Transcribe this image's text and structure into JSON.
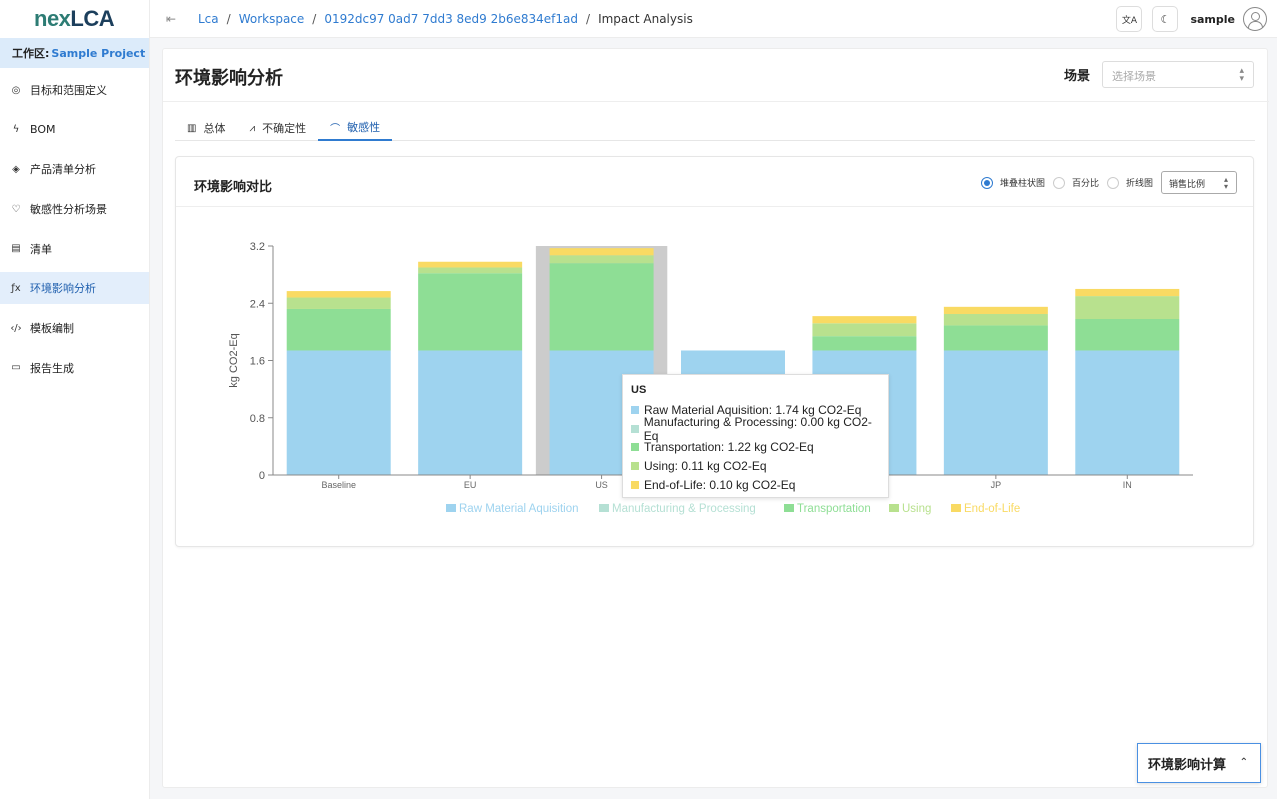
{
  "app": {
    "logo_part1": "nex",
    "logo_part2": "LCA"
  },
  "workspace": {
    "label": "工作区:",
    "project": "Sample Project"
  },
  "sidebar": {
    "items": [
      {
        "label": "目标和范围定义",
        "icon": "target-icon",
        "glyph": "◎"
      },
      {
        "label": "BOM",
        "icon": "bolt-icon",
        "glyph": "ϟ"
      },
      {
        "label": "产品清单分析",
        "icon": "layers-icon",
        "glyph": "◈"
      },
      {
        "label": "敏感性分析场景",
        "icon": "heart-icon",
        "glyph": "♡"
      },
      {
        "label": "清单",
        "icon": "list-icon",
        "glyph": "▤"
      },
      {
        "label": "环境影响分析",
        "icon": "function-icon",
        "glyph": "ƒx"
      },
      {
        "label": "模板编制",
        "icon": "code-icon",
        "glyph": "‹/›"
      },
      {
        "label": "报告生成",
        "icon": "file-icon",
        "glyph": "▭"
      }
    ]
  },
  "breadcrumb": {
    "items": [
      "Lca",
      "Workspace",
      "0192dc97 0ad7 7dd3 8ed9 2b6e834ef1ad"
    ],
    "current": "Impact Analysis",
    "separator": "/"
  },
  "header": {
    "translate_glyph": "文A",
    "theme_glyph": "☾",
    "username": "sample"
  },
  "page": {
    "title": "环境影响分析",
    "scene_label": "场景",
    "scene_placeholder": "选择场景",
    "tabs": [
      {
        "label": "总体",
        "icon": "bar-chart-icon",
        "glyph": "▥"
      },
      {
        "label": "不确定性",
        "icon": "line-chart-icon",
        "glyph": "⩘"
      },
      {
        "label": "敏感性",
        "icon": "area-chart-icon",
        "glyph": "⌒"
      }
    ],
    "active_tab": 2
  },
  "card": {
    "title": "环境影响对比",
    "radios": [
      {
        "label": "堆叠柱状图",
        "checked": true
      },
      {
        "label": "百分比",
        "checked": false
      },
      {
        "label": "折线图",
        "checked": false
      }
    ],
    "metric_select": "销售比例"
  },
  "chart_data": {
    "type": "bar",
    "stacked": true,
    "ylabel": "kg CO2-Eq",
    "ylim": [
      0,
      3.2
    ],
    "yticks": [
      "0",
      "0.8",
      "1.6",
      "2.4",
      "3.2"
    ],
    "ytick_values": [
      0,
      0.8,
      1.6,
      2.4,
      3.2
    ],
    "categories": [
      "Baseline",
      "EU",
      "US",
      "SA",
      "TH",
      "JP",
      "IN"
    ],
    "highlighted_category": "US",
    "legend_position": "bottom",
    "series": [
      {
        "name": "Raw Material Aquisition",
        "color": "#9ed3ef",
        "values": [
          1.74,
          1.74,
          1.74,
          1.74,
          1.74,
          1.74,
          1.74
        ]
      },
      {
        "name": "Manufacturing & Processing",
        "color": "#b5e0d4",
        "values": [
          0.0,
          0.0,
          0.0,
          0.0,
          0.0,
          0.0,
          0.0
        ]
      },
      {
        "name": "Transportation",
        "color": "#8ede95",
        "values": [
          0.58,
          1.08,
          1.22,
          0.0,
          0.2,
          0.35,
          0.44
        ]
      },
      {
        "name": "Using",
        "color": "#b8e18e",
        "values": [
          0.16,
          0.08,
          0.11,
          0.0,
          0.18,
          0.16,
          0.32
        ]
      },
      {
        "name": "End-of-Life",
        "color": "#f9da63",
        "values": [
          0.09,
          0.08,
          0.1,
          0.0,
          0.1,
          0.1,
          0.1
        ]
      }
    ],
    "tooltip": {
      "title": "US",
      "rows": [
        "Raw Material Aquisition: 1.74 kg CO2-Eq",
        "Manufacturing & Processing: 0.00 kg CO2-Eq",
        "Transportation: 1.22 kg CO2-Eq",
        "Using: 0.11 kg CO2-Eq",
        "End-of-Life: 0.10 kg CO2-Eq"
      ]
    }
  },
  "footer": {
    "calc_button": "环境影响计算"
  }
}
